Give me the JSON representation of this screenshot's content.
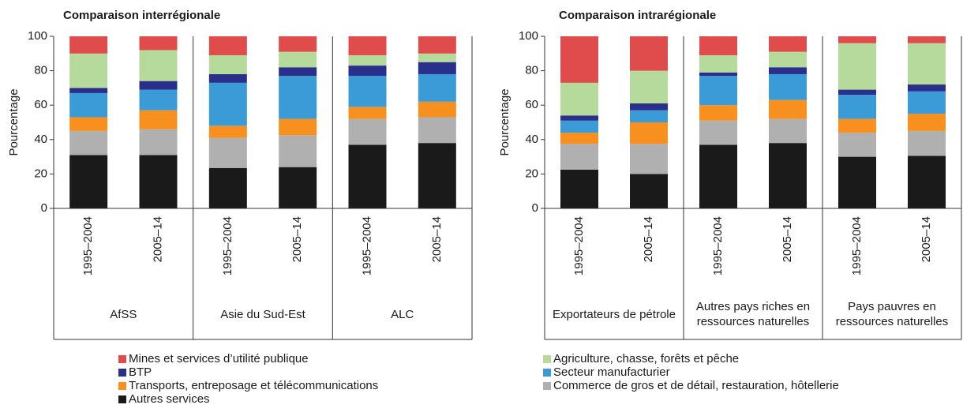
{
  "legend": [
    {
      "name": "Mines et services d’utilité publique",
      "color": "#e04b4b"
    },
    {
      "name": "Agriculture, chasse, forêts et pêche",
      "color": "#b6d99c"
    },
    {
      "name": "BTP",
      "color": "#2b2f8c"
    },
    {
      "name": "Secteur manufacturier",
      "color": "#3a9bd6"
    },
    {
      "name": "Transports, entreposage et télécommunications",
      "color": "#f7901e"
    },
    {
      "name": "Commerce de gros et de détail, restauration, hôtellerie",
      "color": "#b0b0b0"
    },
    {
      "name": "Autres services",
      "color": "#1a1a1a"
    }
  ],
  "chart_data": [
    {
      "type": "bar",
      "stacked": true,
      "title": "Comparaison interrégionale",
      "ylabel": "Pourcentage",
      "categories": [
        "1995–2004",
        "2005–14",
        "1995–2004",
        "2005–14",
        "1995–2004",
        "2005–14"
      ],
      "groups": [
        "AfSS",
        "Asie du Sud-Est",
        "ALC"
      ],
      "ylim": [
        0,
        100
      ],
      "yticks": [
        0,
        20,
        40,
        60,
        80,
        100
      ],
      "series": [
        {
          "values": [
            10,
            8,
            11,
            9,
            11,
            10
          ]
        },
        {
          "values": [
            20,
            18,
            11,
            9,
            6,
            5
          ]
        },
        {
          "values": [
            3,
            5,
            5,
            5,
            6,
            7
          ]
        },
        {
          "values": [
            14,
            12,
            25,
            25,
            18,
            16
          ]
        },
        {
          "values": [
            8,
            11,
            7,
            9.5,
            7,
            9
          ]
        },
        {
          "values": [
            14,
            15,
            17.5,
            18.5,
            15,
            15
          ]
        },
        {
          "values": [
            31,
            31,
            23.5,
            24,
            37,
            38
          ]
        }
      ]
    },
    {
      "type": "bar",
      "stacked": true,
      "title": "Comparaison intrarégionale",
      "ylabel": "Pourcentage",
      "categories": [
        "1995–2004",
        "2005–14",
        "1995–2004",
        "2005–14",
        "1995–2004",
        "2005–14"
      ],
      "groups": [
        "Exportateurs de pétrole",
        "Autres pays riches en ressources naturelles",
        "Pays pauvres en ressources naturelles"
      ],
      "ylim": [
        0,
        100
      ],
      "yticks": [
        0,
        20,
        40,
        60,
        80,
        100
      ],
      "series": [
        {
          "values": [
            27,
            20,
            11,
            9,
            4,
            4
          ]
        },
        {
          "values": [
            19,
            19,
            10,
            9,
            27,
            24
          ]
        },
        {
          "values": [
            3,
            4,
            2,
            4,
            3,
            4
          ]
        },
        {
          "values": [
            7,
            7,
            17,
            15,
            14,
            13
          ]
        },
        {
          "values": [
            6.5,
            12.5,
            9,
            11,
            8,
            10
          ]
        },
        {
          "values": [
            15,
            17.5,
            14,
            14,
            14,
            14.5
          ]
        },
        {
          "values": [
            22.5,
            20,
            37,
            38,
            30,
            30.5
          ]
        }
      ]
    }
  ]
}
